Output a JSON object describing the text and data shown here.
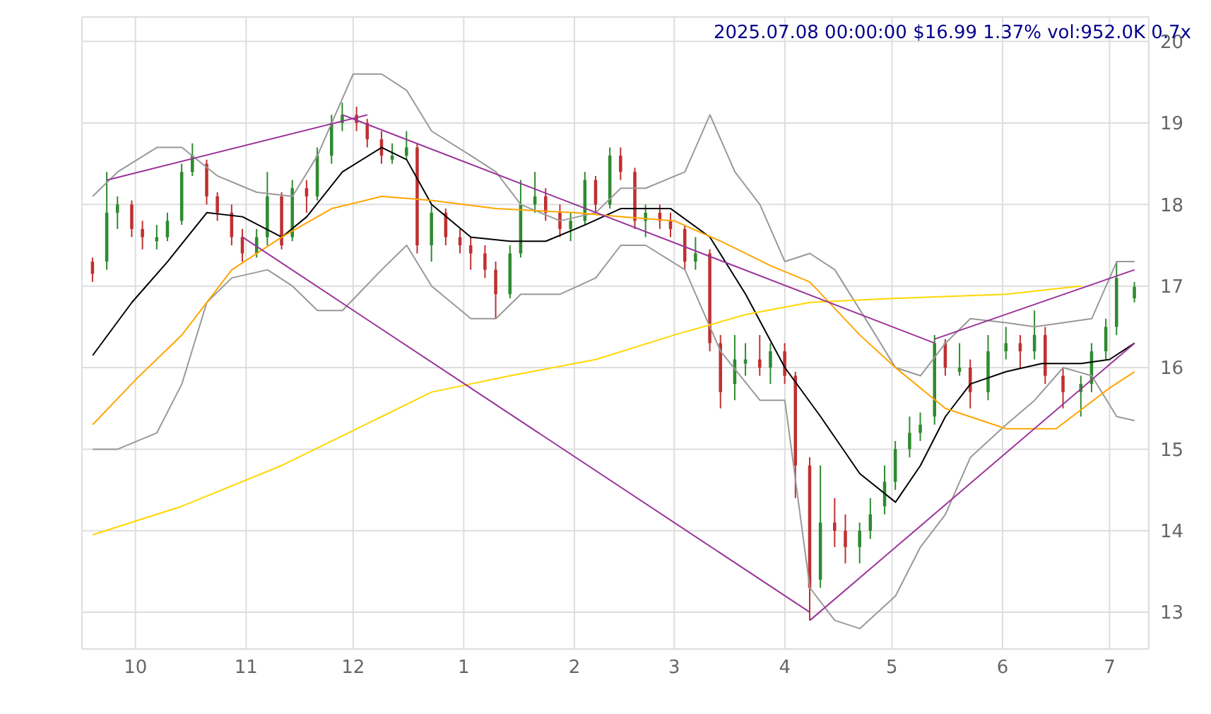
{
  "chart_data": {
    "type": "candlestick",
    "title": "2025.07.08 00:00:00 $16.99 1.37% vol:952.0K 0.7x",
    "grid": true,
    "xlim": [
      "2024-09-16",
      "2025-07-12"
    ],
    "xticks": [
      {
        "value": "2024-10-01",
        "label": "10"
      },
      {
        "value": "2024-11-01",
        "label": "11"
      },
      {
        "value": "2024-12-01",
        "label": "12"
      },
      {
        "value": "2025-01-01",
        "label": "1"
      },
      {
        "value": "2025-02-01",
        "label": "2"
      },
      {
        "value": "2025-03-01",
        "label": "3"
      },
      {
        "value": "2025-04-01",
        "label": "4"
      },
      {
        "value": "2025-05-01",
        "label": "5"
      },
      {
        "value": "2025-06-01",
        "label": "6"
      },
      {
        "value": "2025-07-01",
        "label": "7"
      }
    ],
    "ylim": [
      12.55,
      20.3
    ],
    "yticks": [
      13,
      14,
      15,
      16,
      17,
      18,
      19,
      20
    ],
    "x": [
      "2024-09-19",
      "2024-09-23",
      "2024-09-26",
      "2024-09-30",
      "2024-10-03",
      "2024-10-07",
      "2024-10-10",
      "2024-10-14",
      "2024-10-17",
      "2024-10-21",
      "2024-10-24",
      "2024-10-28",
      "2024-10-31",
      "2024-11-04",
      "2024-11-07",
      "2024-11-11",
      "2024-11-14",
      "2024-11-18",
      "2024-11-21",
      "2024-11-25",
      "2024-11-28",
      "2024-12-02",
      "2024-12-05",
      "2024-12-09",
      "2024-12-12",
      "2024-12-16",
      "2024-12-19",
      "2024-12-23",
      "2024-12-27",
      "2024-12-31",
      "2025-01-03",
      "2025-01-07",
      "2025-01-10",
      "2025-01-14",
      "2025-01-17",
      "2025-01-21",
      "2025-01-24",
      "2025-01-28",
      "2025-01-31",
      "2025-02-04",
      "2025-02-07",
      "2025-02-11",
      "2025-02-14",
      "2025-02-18",
      "2025-02-21",
      "2025-02-25",
      "2025-02-28",
      "2025-03-04",
      "2025-03-07",
      "2025-03-11",
      "2025-03-14",
      "2025-03-18",
      "2025-03-21",
      "2025-03-25",
      "2025-03-28",
      "2025-04-01",
      "2025-04-04",
      "2025-04-08",
      "2025-04-11",
      "2025-04-15",
      "2025-04-18",
      "2025-04-22",
      "2025-04-25",
      "2025-04-29",
      "2025-05-02",
      "2025-05-06",
      "2025-05-09",
      "2025-05-13",
      "2025-05-16",
      "2025-05-20",
      "2025-05-23",
      "2025-05-28",
      "2025-06-02",
      "2025-06-06",
      "2025-06-10",
      "2025-06-13",
      "2025-06-18",
      "2025-06-23",
      "2025-06-26",
      "2025-06-30",
      "2025-07-03",
      "2025-07-08"
    ],
    "ohlc": [
      [
        17.3,
        17.35,
        17.05,
        17.15
      ],
      [
        17.3,
        18.4,
        17.2,
        17.9
      ],
      [
        17.9,
        18.1,
        17.7,
        18.0
      ],
      [
        18.0,
        18.05,
        17.6,
        17.7
      ],
      [
        17.7,
        17.8,
        17.45,
        17.6
      ],
      [
        17.55,
        17.75,
        17.45,
        17.6
      ],
      [
        17.6,
        17.9,
        17.55,
        17.8
      ],
      [
        17.8,
        18.5,
        17.75,
        18.4
      ],
      [
        18.4,
        18.75,
        18.35,
        18.6
      ],
      [
        18.5,
        18.55,
        18.0,
        18.1
      ],
      [
        18.1,
        18.15,
        17.8,
        17.9
      ],
      [
        17.9,
        18.0,
        17.5,
        17.6
      ],
      [
        17.6,
        17.7,
        17.3,
        17.4
      ],
      [
        17.4,
        17.7,
        17.35,
        17.6
      ],
      [
        17.6,
        18.4,
        17.5,
        18.1
      ],
      [
        18.1,
        18.15,
        17.45,
        17.5
      ],
      [
        17.6,
        18.3,
        17.55,
        18.2
      ],
      [
        18.2,
        18.3,
        17.9,
        18.1
      ],
      [
        18.1,
        18.7,
        18.05,
        18.6
      ],
      [
        18.6,
        19.1,
        18.5,
        19.0
      ],
      [
        19.0,
        19.25,
        18.9,
        19.1
      ],
      [
        19.1,
        19.2,
        18.9,
        19.0
      ],
      [
        19.0,
        19.05,
        18.7,
        18.8
      ],
      [
        18.8,
        18.9,
        18.5,
        18.6
      ],
      [
        18.55,
        18.75,
        18.5,
        18.6
      ],
      [
        18.6,
        18.9,
        18.55,
        18.7
      ],
      [
        18.7,
        18.75,
        17.4,
        17.5
      ],
      [
        17.5,
        18.0,
        17.3,
        17.9
      ],
      [
        17.9,
        17.95,
        17.5,
        17.6
      ],
      [
        17.6,
        17.7,
        17.4,
        17.5
      ],
      [
        17.5,
        17.6,
        17.2,
        17.4
      ],
      [
        17.4,
        17.5,
        17.1,
        17.2
      ],
      [
        17.2,
        17.3,
        16.6,
        16.9
      ],
      [
        16.9,
        17.5,
        16.85,
        17.4
      ],
      [
        17.4,
        18.3,
        17.35,
        18.0
      ],
      [
        18.0,
        18.4,
        17.9,
        18.1
      ],
      [
        18.1,
        18.2,
        17.8,
        17.9
      ],
      [
        17.9,
        18.0,
        17.6,
        17.7
      ],
      [
        17.7,
        17.9,
        17.55,
        17.8
      ],
      [
        17.8,
        18.4,
        17.75,
        18.3
      ],
      [
        18.3,
        18.35,
        17.9,
        18.0
      ],
      [
        18.0,
        18.7,
        17.95,
        18.6
      ],
      [
        18.6,
        18.7,
        18.3,
        18.4
      ],
      [
        18.4,
        18.45,
        17.7,
        17.8
      ],
      [
        17.8,
        18.0,
        17.6,
        17.9
      ],
      [
        17.9,
        18.0,
        17.7,
        17.8
      ],
      [
        17.8,
        17.9,
        17.6,
        17.7
      ],
      [
        17.7,
        17.75,
        17.2,
        17.3
      ],
      [
        17.3,
        17.6,
        17.2,
        17.4
      ],
      [
        17.4,
        17.45,
        16.2,
        16.3
      ],
      [
        16.3,
        16.4,
        15.5,
        15.7
      ],
      [
        15.8,
        16.4,
        15.6,
        16.1
      ],
      [
        16.05,
        16.3,
        15.9,
        16.1
      ],
      [
        16.1,
        16.4,
        15.9,
        16.0
      ],
      [
        16.0,
        16.3,
        15.8,
        16.2
      ],
      [
        16.2,
        16.3,
        15.8,
        15.9
      ],
      [
        15.9,
        15.95,
        14.4,
        14.8
      ],
      [
        14.8,
        14.9,
        12.9,
        13.3
      ],
      [
        13.4,
        14.8,
        13.3,
        14.1
      ],
      [
        14.1,
        14.4,
        13.8,
        14.0
      ],
      [
        14.0,
        14.2,
        13.6,
        13.8
      ],
      [
        13.8,
        14.1,
        13.6,
        14.0
      ],
      [
        14.0,
        14.4,
        13.9,
        14.2
      ],
      [
        14.3,
        14.8,
        14.2,
        14.6
      ],
      [
        14.6,
        15.1,
        14.5,
        15.0
      ],
      [
        15.0,
        15.4,
        14.9,
        15.2
      ],
      [
        15.2,
        15.45,
        15.1,
        15.3
      ],
      [
        15.4,
        16.4,
        15.3,
        16.3
      ],
      [
        16.3,
        16.35,
        15.9,
        16.0
      ],
      [
        15.95,
        16.3,
        15.9,
        16.0
      ],
      [
        16.0,
        16.1,
        15.5,
        15.7
      ],
      [
        15.7,
        16.4,
        15.6,
        16.2
      ],
      [
        16.2,
        16.5,
        16.1,
        16.3
      ],
      [
        16.3,
        16.4,
        16.0,
        16.2
      ],
      [
        16.2,
        16.7,
        16.1,
        16.4
      ],
      [
        16.4,
        16.5,
        15.8,
        15.9
      ],
      [
        15.9,
        16.0,
        15.5,
        15.7
      ],
      [
        15.7,
        15.9,
        15.4,
        15.8
      ],
      [
        15.8,
        16.3,
        15.7,
        16.2
      ],
      [
        16.2,
        16.6,
        16.1,
        16.5
      ],
      [
        16.5,
        17.3,
        16.4,
        17.1
      ],
      [
        16.85,
        17.05,
        16.8,
        16.99
      ]
    ],
    "series": [
      {
        "type": "line",
        "color": "#999999",
        "x": [
          "2024-09-19",
          "2024-09-26",
          "2024-10-07",
          "2024-10-14",
          "2024-10-24",
          "2024-11-04",
          "2024-11-14",
          "2024-11-21",
          "2024-12-01",
          "2024-12-09",
          "2024-12-16",
          "2024-12-23",
          "2025-01-03",
          "2025-01-10",
          "2025-01-17",
          "2025-01-28",
          "2025-02-07",
          "2025-02-14",
          "2025-02-21",
          "2025-03-04",
          "2025-03-11",
          "2025-03-18",
          "2025-03-25",
          "2025-04-01",
          "2025-04-08",
          "2025-04-15",
          "2025-04-25",
          "2025-05-02",
          "2025-05-09",
          "2025-05-16",
          "2025-05-23",
          "2025-06-02",
          "2025-06-10",
          "2025-06-18",
          "2025-06-26",
          "2025-07-03",
          "2025-07-08"
        ],
        "values": [
          18.1,
          18.4,
          18.7,
          18.7,
          18.35,
          18.15,
          18.1,
          18.6,
          19.6,
          19.6,
          19.4,
          18.9,
          18.6,
          18.4,
          18.0,
          17.8,
          17.9,
          18.2,
          18.2,
          18.4,
          19.1,
          18.4,
          18.0,
          17.3,
          17.4,
          17.2,
          16.5,
          16.0,
          15.9,
          16.3,
          16.6,
          16.55,
          16.5,
          16.55,
          16.6,
          17.3,
          17.3
        ]
      },
      {
        "type": "line",
        "color": "#999999",
        "x": [
          "2024-09-19",
          "2024-09-26",
          "2024-10-07",
          "2024-10-14",
          "2024-10-21",
          "2024-10-28",
          "2024-11-07",
          "2024-11-14",
          "2024-11-21",
          "2024-11-28",
          "2024-12-09",
          "2024-12-16",
          "2024-12-23",
          "2025-01-03",
          "2025-01-10",
          "2025-01-17",
          "2025-01-28",
          "2025-02-07",
          "2025-02-14",
          "2025-02-21",
          "2025-03-04",
          "2025-03-14",
          "2025-03-25",
          "2025-04-01",
          "2025-04-08",
          "2025-04-15",
          "2025-04-22",
          "2025-05-02",
          "2025-05-09",
          "2025-05-16",
          "2025-05-23",
          "2025-06-02",
          "2025-06-10",
          "2025-06-18",
          "2025-06-26",
          "2025-07-03",
          "2025-07-08"
        ],
        "values": [
          15.0,
          15.0,
          15.2,
          15.8,
          16.8,
          17.1,
          17.2,
          17.0,
          16.7,
          16.7,
          17.2,
          17.5,
          17.0,
          16.6,
          16.6,
          16.9,
          16.9,
          17.1,
          17.5,
          17.5,
          17.2,
          16.2,
          15.6,
          15.6,
          13.3,
          12.9,
          12.8,
          13.2,
          13.8,
          14.2,
          14.9,
          15.3,
          15.6,
          16.0,
          15.9,
          15.4,
          15.35
        ]
      },
      {
        "type": "line",
        "color": "#000000",
        "x": [
          "2024-09-19",
          "2024-09-30",
          "2024-10-10",
          "2024-10-21",
          "2024-10-31",
          "2024-11-11",
          "2024-11-18",
          "2024-11-28",
          "2024-12-09",
          "2024-12-16",
          "2024-12-23",
          "2025-01-03",
          "2025-01-14",
          "2025-01-24",
          "2025-02-04",
          "2025-02-14",
          "2025-02-28",
          "2025-03-11",
          "2025-03-21",
          "2025-04-01",
          "2025-04-11",
          "2025-04-22",
          "2025-05-02",
          "2025-05-09",
          "2025-05-16",
          "2025-05-23",
          "2025-06-02",
          "2025-06-12",
          "2025-06-23",
          "2025-07-01",
          "2025-07-08"
        ],
        "values": [
          16.15,
          16.8,
          17.3,
          17.9,
          17.85,
          17.6,
          17.85,
          18.4,
          18.7,
          18.55,
          18.0,
          17.6,
          17.55,
          17.55,
          17.75,
          17.95,
          17.95,
          17.6,
          16.9,
          16.0,
          15.4,
          14.7,
          14.35,
          14.8,
          15.4,
          15.8,
          15.95,
          16.05,
          16.05,
          16.1,
          16.3
        ]
      },
      {
        "type": "line",
        "color": "#ffa500",
        "x": [
          "2024-09-19",
          "2024-10-01",
          "2024-10-14",
          "2024-10-28",
          "2024-11-11",
          "2024-11-25",
          "2024-12-09",
          "2024-12-23",
          "2025-01-10",
          "2025-02-01",
          "2025-02-14",
          "2025-03-01",
          "2025-03-14",
          "2025-03-28",
          "2025-04-08",
          "2025-04-22",
          "2025-05-02",
          "2025-05-16",
          "2025-06-02",
          "2025-06-16",
          "2025-07-01",
          "2025-07-08"
        ],
        "values": [
          15.3,
          15.85,
          16.4,
          17.2,
          17.6,
          17.95,
          18.1,
          18.05,
          17.95,
          17.9,
          17.85,
          17.8,
          17.55,
          17.25,
          17.05,
          16.4,
          16.0,
          15.5,
          15.25,
          15.25,
          15.75,
          15.95
        ]
      },
      {
        "type": "line",
        "color": "#ffd700",
        "x": [
          "2024-09-19",
          "2024-10-14",
          "2024-11-11",
          "2024-12-09",
          "2024-12-23",
          "2025-01-14",
          "2025-02-07",
          "2025-03-01",
          "2025-03-21",
          "2025-04-08",
          "2025-05-02",
          "2025-06-02",
          "2025-06-23"
        ],
        "values": [
          13.95,
          14.3,
          14.8,
          15.4,
          15.7,
          15.9,
          16.1,
          16.4,
          16.65,
          16.8,
          16.85,
          16.9,
          17.0
        ]
      },
      {
        "type": "line",
        "color": "#993399",
        "x": [
          "2024-09-23",
          "2024-12-05"
        ],
        "values": [
          18.3,
          19.1
        ]
      },
      {
        "type": "line",
        "color": "#993399",
        "x": [
          "2024-11-28",
          "2025-05-13"
        ],
        "values": [
          19.1,
          16.3
        ]
      },
      {
        "type": "line",
        "color": "#993399",
        "x": [
          "2025-05-13",
          "2025-07-08"
        ],
        "values": [
          16.35,
          17.2
        ]
      },
      {
        "type": "line",
        "color": "#993399",
        "x": [
          "2024-10-31",
          "2025-04-08"
        ],
        "values": [
          17.6,
          13.0
        ]
      },
      {
        "type": "line",
        "color": "#993399",
        "x": [
          "2025-04-08",
          "2025-07-08"
        ],
        "values": [
          12.9,
          16.3
        ]
      }
    ]
  }
}
